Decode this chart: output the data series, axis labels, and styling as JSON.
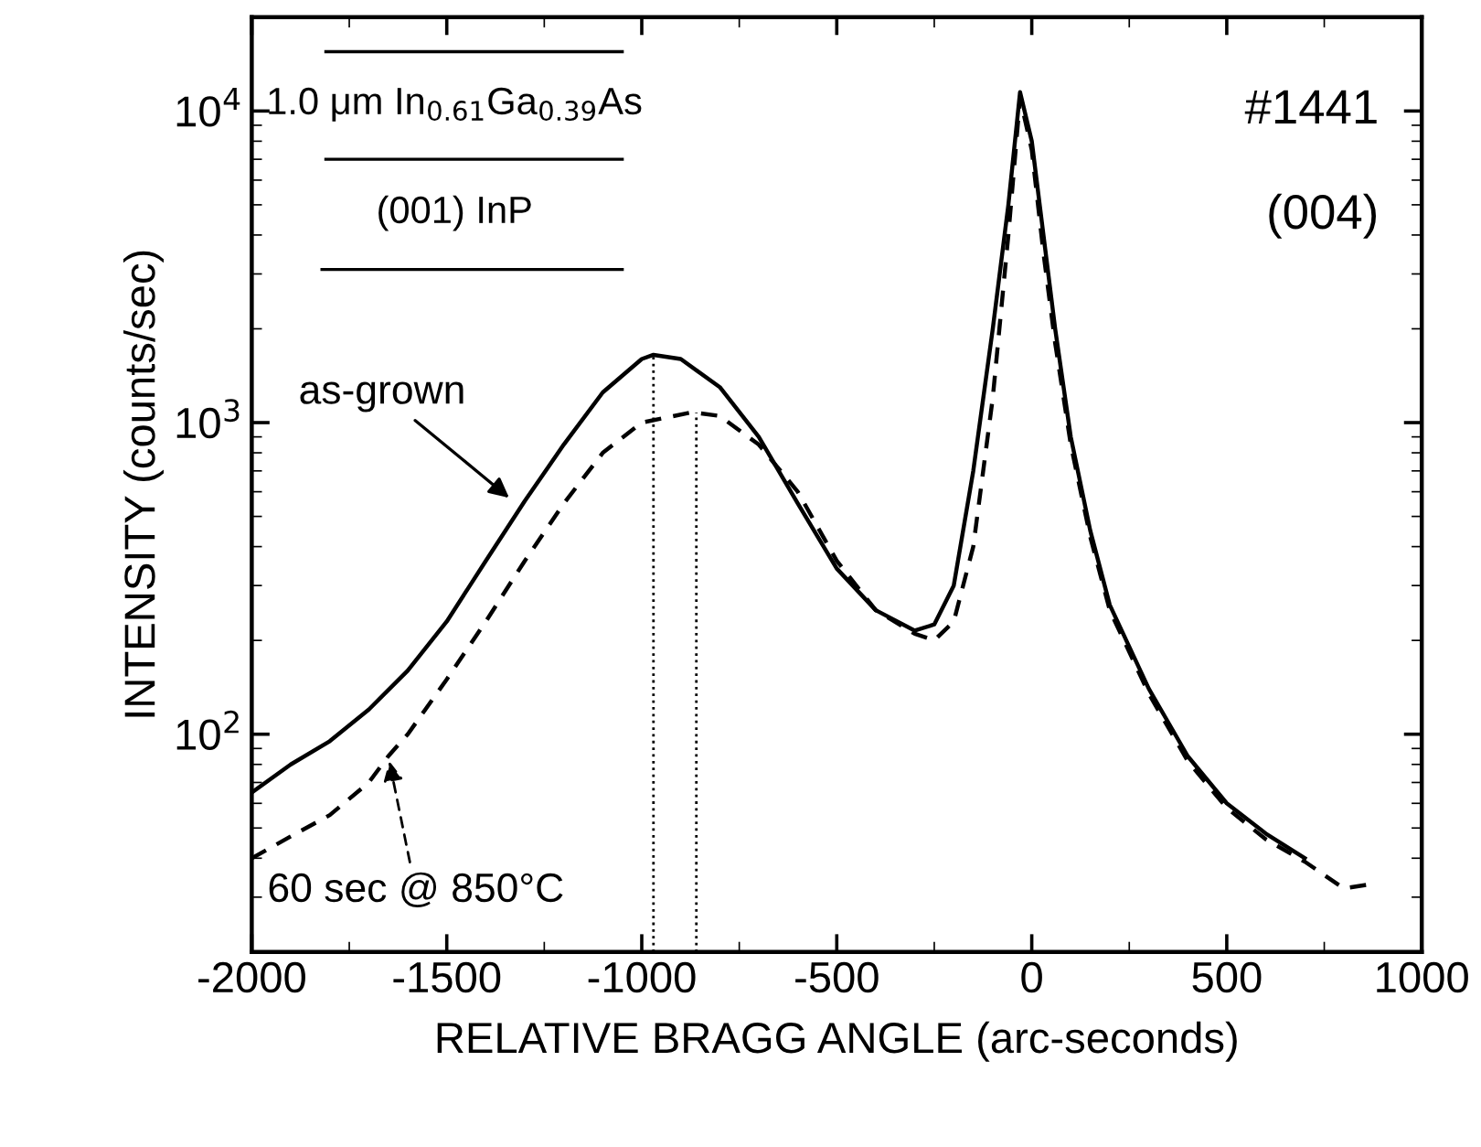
{
  "chart_data": {
    "type": "line",
    "xlabel": "RELATIVE BRAGG ANGLE (arc-seconds)",
    "ylabel": "INTENSITY (counts/sec)",
    "log": "y",
    "xlim": [
      -2000,
      1000
    ],
    "xticks": [
      -2000,
      -1500,
      -1000,
      -500,
      0,
      500,
      1000
    ],
    "ylim": [
      20,
      20000
    ],
    "yticks": [
      {
        "value": 100,
        "label": "10$^{2}$"
      },
      {
        "value": 1000,
        "label": "10$^{3}$"
      },
      {
        "value": 10000,
        "label": "10$^{4}$"
      }
    ],
    "grid": false,
    "legend": false,
    "series": [
      {
        "color": "#000000",
        "line_style": "solid",
        "x": [
          -2000,
          -1900,
          -1800,
          -1700,
          -1600,
          -1500,
          -1400,
          -1300,
          -1200,
          -1100,
          -1000,
          -970,
          -900,
          -800,
          -700,
          -600,
          -500,
          -400,
          -300,
          -250,
          -200,
          -150,
          -100,
          -60,
          -30,
          0,
          30,
          60,
          100,
          150,
          200,
          300,
          400,
          500,
          600,
          700
        ],
        "values": [
          65,
          80,
          95,
          120,
          160,
          230,
          360,
          560,
          850,
          1250,
          1600,
          1650,
          1600,
          1300,
          900,
          550,
          340,
          250,
          215,
          225,
          300,
          700,
          2000,
          5000,
          11500,
          8000,
          4000,
          2000,
          900,
          450,
          260,
          140,
          85,
          60,
          48,
          40
        ]
      },
      {
        "color": "#000000",
        "line_style": "dashed",
        "x": [
          -2000,
          -1900,
          -1800,
          -1700,
          -1650,
          -1600,
          -1500,
          -1400,
          -1300,
          -1200,
          -1100,
          -1000,
          -870,
          -800,
          -700,
          -600,
          -500,
          -400,
          -300,
          -250,
          -200,
          -150,
          -100,
          -60,
          -30,
          0,
          30,
          60,
          100,
          150,
          200,
          300,
          400,
          500,
          600,
          700,
          800,
          870
        ],
        "values": [
          40,
          47,
          55,
          70,
          85,
          100,
          150,
          230,
          360,
          550,
          800,
          1000,
          1080,
          1050,
          850,
          600,
          360,
          250,
          210,
          200,
          230,
          400,
          1200,
          4000,
          11000,
          7500,
          3500,
          1800,
          850,
          430,
          250,
          135,
          82,
          58,
          46,
          39,
          32,
          33
        ]
      }
    ],
    "ref_lines": [
      {
        "axis": "x",
        "value": -970,
        "line_style": "dotted",
        "color": "#000000"
      },
      {
        "axis": "x",
        "value": -860,
        "line_style": "dotted",
        "color": "#000000"
      }
    ],
    "annotations": [
      {
        "text": "as-grown",
        "x": -1330,
        "y": 560
      },
      {
        "text": "60 sec @ 850°C",
        "x": -1650,
        "y": 85
      },
      "1.0 μm In$_{0.61}$Ga$_{0.39}$As",
      "(001) InP",
      "#1441",
      "(004)"
    ]
  }
}
